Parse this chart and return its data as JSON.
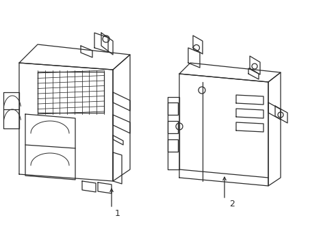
{
  "background_color": "#ffffff",
  "line_color": "#2a2a2a",
  "line_width": 0.9,
  "label1": "1",
  "label2": "2",
  "label_fontsize": 9,
  "figsize": [
    4.89,
    3.6
  ],
  "dpi": 100
}
